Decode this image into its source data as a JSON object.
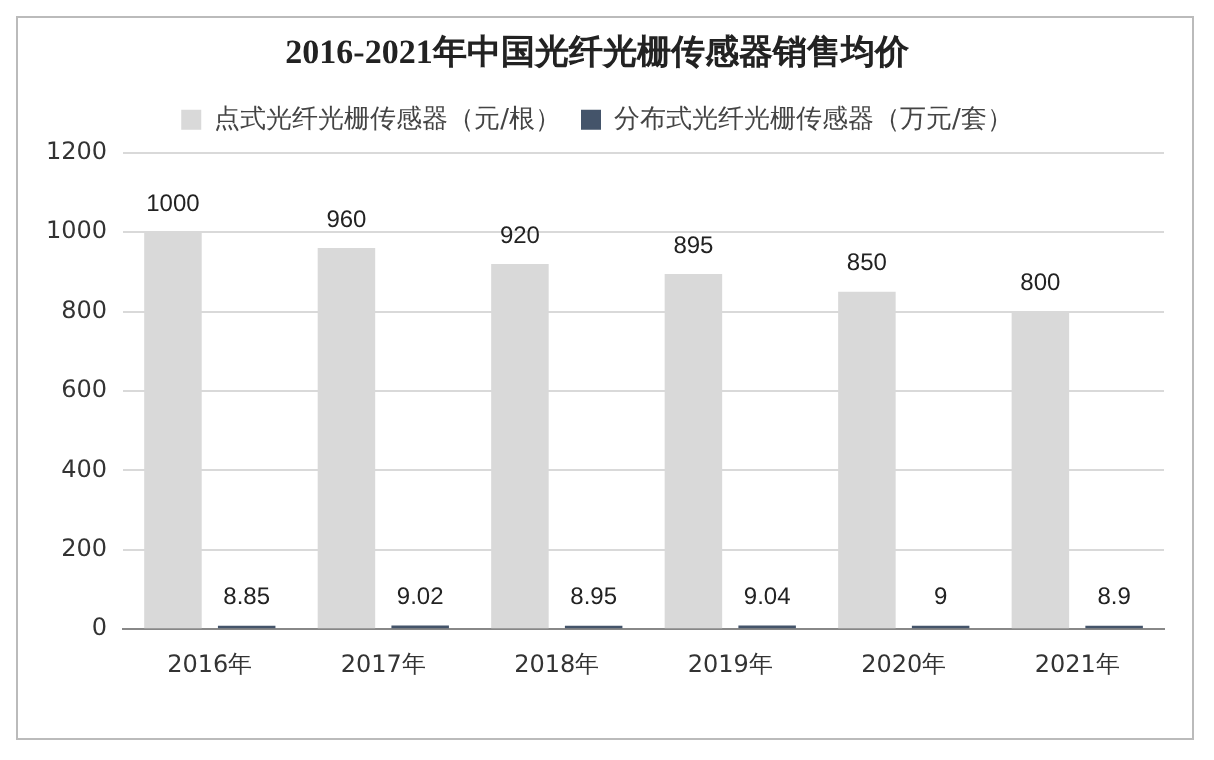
{
  "chart_data": {
    "type": "bar",
    "title": "2016-2021年中国光纤光栅传感器销售均价",
    "categories": [
      "2016年",
      "2017年",
      "2018年",
      "2019年",
      "2020年",
      "2021年"
    ],
    "series": [
      {
        "name": "点式光纤光栅传感器（元/根）",
        "color": "#d9d9d9",
        "values": [
          1000,
          960,
          920,
          895,
          850,
          800
        ]
      },
      {
        "name": "分布式光纤光栅传感器（万元/套）",
        "color": "#44546a",
        "values": [
          8.85,
          9.02,
          8.95,
          9.04,
          9,
          8.9
        ]
      }
    ],
    "ylim": [
      0,
      1200
    ],
    "yticks": [
      0,
      200,
      400,
      600,
      800,
      1000,
      1200
    ],
    "grid": "y",
    "legend": "top",
    "data_labels": true
  }
}
